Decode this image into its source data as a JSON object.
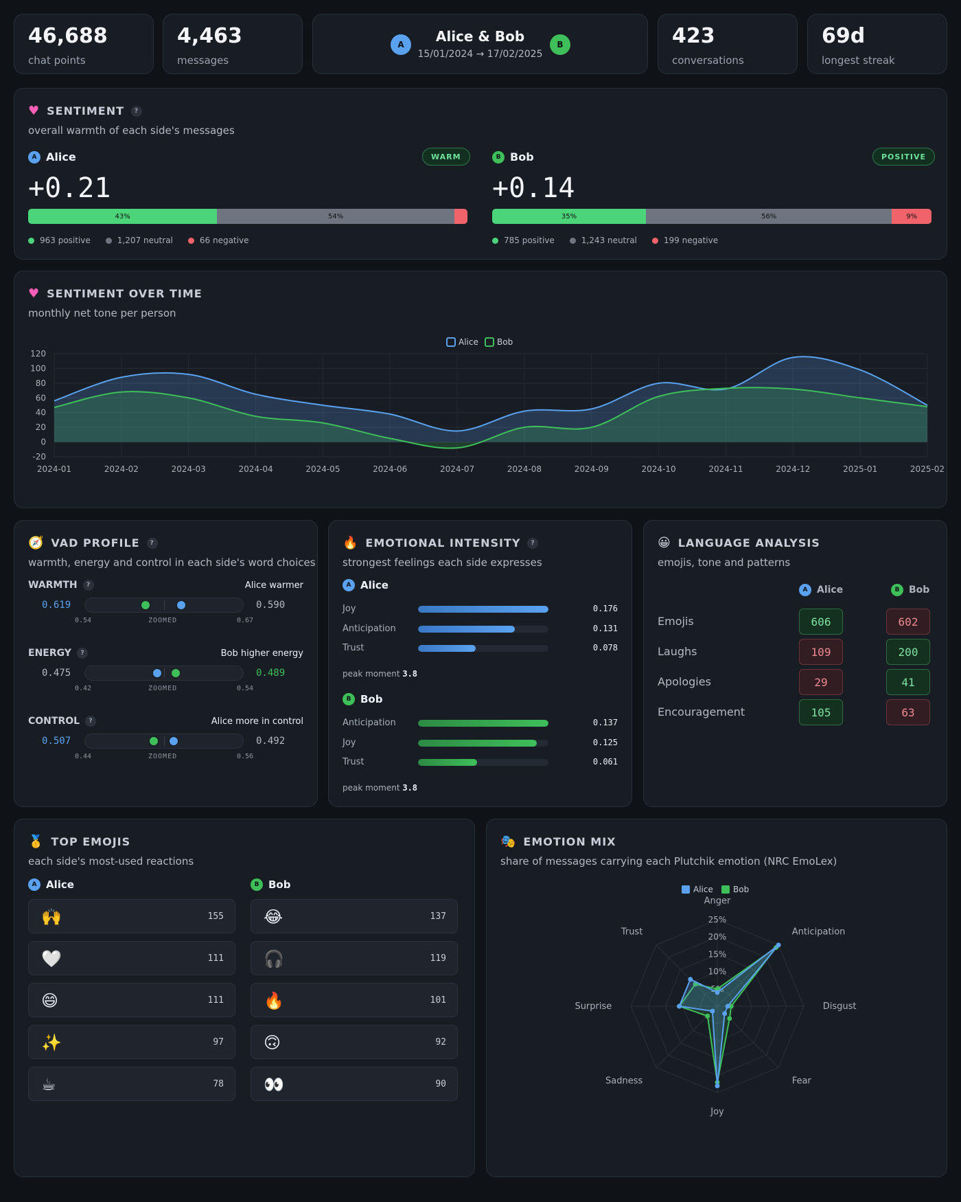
{
  "stats": [
    {
      "value": "46,688",
      "label": "chat points"
    },
    {
      "value": "4,463",
      "label": "messages"
    },
    {
      "value": "423",
      "label": "conversations"
    },
    {
      "value": "69d",
      "label": "longest streak"
    }
  ],
  "header": {
    "title": "Alice & Bob",
    "range": "15/01/2024 → 17/02/2025",
    "avatar_a": "A",
    "avatar_b": "B"
  },
  "sentiment": {
    "title": "SENTIMENT",
    "icon": "heart-icon",
    "subtitle": "overall warmth of each side's messages",
    "alice": {
      "name": "Alice",
      "badge": "WARM",
      "score": "+0.21",
      "pos_pct": 43,
      "neu_pct": 54,
      "neg_pct": 3,
      "pos_label": "43%",
      "neu_label": "54%",
      "positive": "963 positive",
      "neutral": "1,207 neutral",
      "negative": "66 negative"
    },
    "bob": {
      "name": "Bob",
      "badge": "POSITIVE",
      "score": "+0.14",
      "pos_pct": 35,
      "neu_pct": 56,
      "neg_pct": 9,
      "pos_label": "35%",
      "neu_label": "56%",
      "neg_label": "9%",
      "positive": "785 positive",
      "neutral": "1,243 neutral",
      "negative": "199 negative"
    },
    "colors": {
      "positive": "#4cd47a",
      "neutral": "#6e7480",
      "negative": "#f0636b"
    }
  },
  "over_time": {
    "title": "SENTIMENT OVER TIME",
    "subtitle": "monthly net tone per person",
    "legend": [
      "Alice",
      "Bob"
    ]
  },
  "chart_data": {
    "type": "area",
    "x": [
      "2024-01",
      "2024-02",
      "2024-03",
      "2024-04",
      "2024-05",
      "2024-06",
      "2024-07",
      "2024-08",
      "2024-09",
      "2024-10",
      "2024-11",
      "2024-12",
      "2025-01",
      "2025-02"
    ],
    "series": [
      {
        "name": "Alice",
        "color": "#5aa2f0",
        "values": [
          56,
          88,
          92,
          65,
          50,
          38,
          15,
          42,
          45,
          80,
          72,
          115,
          98,
          50
        ]
      },
      {
        "name": "Bob",
        "color": "#3fbf5a",
        "values": [
          47,
          68,
          60,
          35,
          26,
          5,
          -8,
          20,
          20,
          62,
          73,
          72,
          60,
          48
        ]
      }
    ],
    "yticks": [
      120,
      100,
      80,
      60,
      40,
      20,
      0,
      -20
    ],
    "ylim": [
      -20,
      120
    ],
    "grid": true,
    "legend_position": "top-center"
  },
  "vad": {
    "title": "VAD PROFILE",
    "subtitle": "warmth, energy and control in each side's word choices",
    "zoom_label": "ZOOMED",
    "rows": [
      {
        "label": "WARMTH",
        "verdict": "Alice warmer",
        "left": "0.619",
        "right": "0.590",
        "min": "0.54",
        "max": "0.67",
        "alice": 0.619,
        "bob": 0.59,
        "lo": 0.54,
        "hi": 0.67,
        "left_color": "#5aa2f0",
        "right_color": "#b4bac4"
      },
      {
        "label": "ENERGY",
        "verdict": "Bob higher energy",
        "left": "0.475",
        "right": "0.489",
        "min": "0.42",
        "max": "0.54",
        "alice": 0.475,
        "bob": 0.489,
        "lo": 0.42,
        "hi": 0.54,
        "left_color": "#b4bac4",
        "right_color": "#3fbf5a"
      },
      {
        "label": "CONTROL",
        "verdict": "Alice more in control",
        "left": "0.507",
        "right": "0.492",
        "min": "0.44",
        "max": "0.56",
        "alice": 0.507,
        "bob": 0.492,
        "lo": 0.44,
        "hi": 0.56,
        "left_color": "#5aa2f0",
        "right_color": "#b4bac4"
      }
    ]
  },
  "intensity": {
    "title": "EMOTIONAL INTENSITY",
    "subtitle": "strongest feelings each side expresses",
    "alice": {
      "name": "Alice",
      "peak_label": "peak moment",
      "peak": "3.8",
      "rows": [
        {
          "name": "Joy",
          "val": "0.176",
          "frac": 1.0
        },
        {
          "name": "Anticipation",
          "val": "0.131",
          "frac": 0.74
        },
        {
          "name": "Trust",
          "val": "0.078",
          "frac": 0.44
        }
      ]
    },
    "bob": {
      "name": "Bob",
      "peak_label": "peak moment",
      "peak": "3.8",
      "rows": [
        {
          "name": "Anticipation",
          "val": "0.137",
          "frac": 1.0
        },
        {
          "name": "Joy",
          "val": "0.125",
          "frac": 0.91
        },
        {
          "name": "Trust",
          "val": "0.061",
          "frac": 0.45
        }
      ]
    }
  },
  "language": {
    "title": "LANGUAGE ANALYSIS",
    "subtitle": "emojis, tone and patterns",
    "col_a": "Alice",
    "col_b": "Bob",
    "rows": [
      {
        "label": "Emojis",
        "a": "606",
        "b": "602",
        "a_state": "g",
        "b_state": "r"
      },
      {
        "label": "Laughs",
        "a": "109",
        "b": "200",
        "a_state": "r",
        "b_state": "g"
      },
      {
        "label": "Apologies",
        "a": "29",
        "b": "41",
        "a_state": "r",
        "b_state": "g"
      },
      {
        "label": "Encouragement",
        "a": "105",
        "b": "63",
        "a_state": "g",
        "b_state": "r"
      }
    ]
  },
  "top_emojis": {
    "title": "TOP EMOJIS",
    "subtitle": "each side's most-used reactions",
    "alice": {
      "name": "Alice",
      "items": [
        {
          "emoji": "🙌",
          "count": "155"
        },
        {
          "emoji": "🤍",
          "count": "111"
        },
        {
          "emoji": "😄",
          "count": "111"
        },
        {
          "emoji": "✨",
          "count": "97"
        },
        {
          "emoji": "☕",
          "count": "78"
        }
      ]
    },
    "bob": {
      "name": "Bob",
      "items": [
        {
          "emoji": "😂",
          "count": "137"
        },
        {
          "emoji": "🎧",
          "count": "119"
        },
        {
          "emoji": "🔥",
          "count": "101"
        },
        {
          "emoji": "🙃",
          "count": "92"
        },
        {
          "emoji": "👀",
          "count": "90"
        }
      ]
    }
  },
  "emotion_mix": {
    "title": "EMOTION MIX",
    "subtitle": "share of messages carrying each Plutchik emotion (NRC EmoLex)",
    "legend": [
      "Alice",
      "Bob"
    ],
    "axes": [
      "Anger",
      "Anticipation",
      "Disgust",
      "Fear",
      "Joy",
      "Sadness",
      "Surprise",
      "Trust"
    ],
    "ticks": [
      "25%",
      "20%",
      "15%",
      "10%",
      "5%"
    ],
    "max": 25,
    "alice": [
      4,
      25,
      3,
      3,
      23,
      2,
      11,
      11
    ],
    "bob": [
      5,
      24,
      4,
      5,
      22,
      4,
      11,
      9
    ]
  }
}
